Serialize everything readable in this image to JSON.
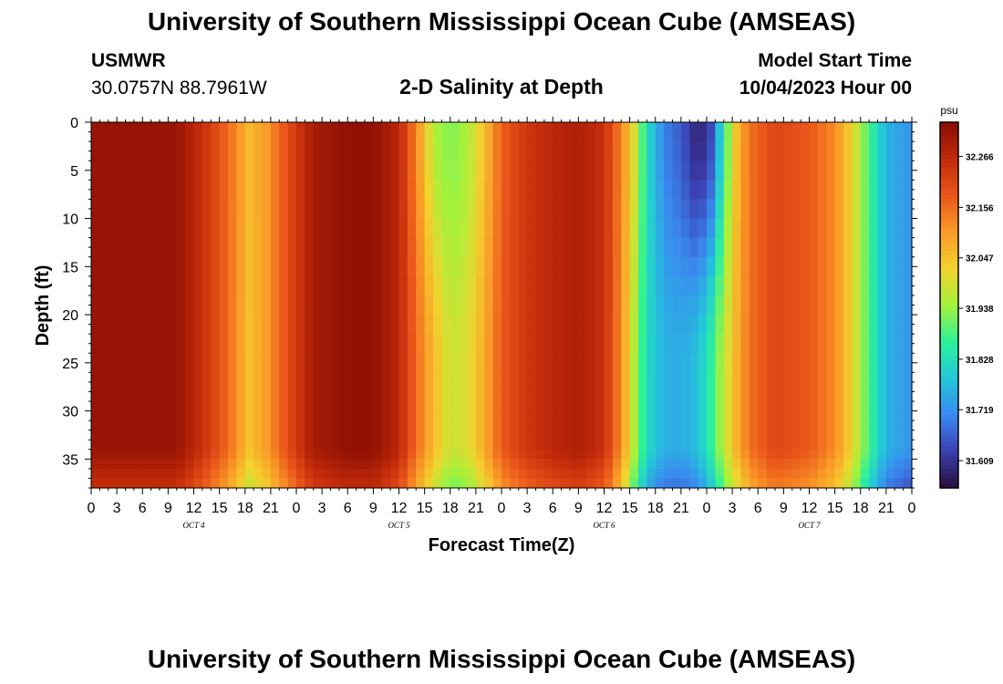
{
  "page": {
    "title": "University of Southern Mississippi Ocean Cube (AMSEAS)",
    "bottom_title": "University of Southern Mississippi Ocean Cube (AMSEAS)",
    "station": "USMWR",
    "coordinates": "30.0757N  88.7961W",
    "subtitle": "2-D Salinity at Depth",
    "model_start_label": "Model Start Time",
    "model_start_value": "10/04/2023 Hour 00"
  },
  "chart_data": {
    "type": "heatmap",
    "title": "2-D Salinity at Depth",
    "xlabel": "Forecast Time(Z)",
    "ylabel": "Depth (ft)",
    "colorbar_unit": "psu",
    "xlim": [
      0,
      96
    ],
    "ylim": [
      38,
      0
    ],
    "y_ticks": [
      0,
      5,
      10,
      15,
      20,
      25,
      30,
      35
    ],
    "y_tick_labels": [
      "0",
      "5",
      "10",
      "15",
      "20",
      "25",
      "30",
      "35"
    ],
    "x_ticks": [
      0,
      3,
      6,
      9,
      12,
      15,
      18,
      21,
      24,
      27,
      30,
      33,
      36,
      39,
      42,
      45,
      48,
      51,
      54,
      57,
      60,
      63,
      66,
      69,
      72,
      75,
      78,
      81,
      84,
      87,
      90,
      93,
      96
    ],
    "x_tick_labels": [
      "0",
      "3",
      "6",
      "9",
      "12",
      "15",
      "18",
      "21",
      "0",
      "3",
      "6",
      "9",
      "12",
      "15",
      "18",
      "21",
      "0",
      "3",
      "6",
      "9",
      "12",
      "15",
      "18",
      "21",
      "0",
      "3",
      "6",
      "9",
      "12",
      "15",
      "18",
      "21",
      "0"
    ],
    "day_labels": [
      {
        "hour": 12,
        "label": "OCT 4"
      },
      {
        "hour": 36,
        "label": "OCT 5"
      },
      {
        "hour": 60,
        "label": "OCT 6"
      },
      {
        "hour": 84,
        "label": "OCT 7"
      }
    ],
    "colorbar_min": 31.55,
    "colorbar_max": 32.34,
    "colorbar_ticks": [
      "32.266",
      "32.156",
      "32.047",
      "31.938",
      "31.828",
      "31.719",
      "31.609"
    ],
    "colorbar_tick_values": [
      32.266,
      32.156,
      32.047,
      31.938,
      31.828,
      31.719,
      31.609
    ],
    "palette": [
      "#2a0f3a",
      "#3b3fb2",
      "#3a8af0",
      "#23c7d9",
      "#2df29a",
      "#a5f23a",
      "#f2d22e",
      "#fa9a28",
      "#ea561a",
      "#c02a0a",
      "#8a0d03"
    ],
    "surface_salinity_by_hour": [
      [
        0,
        32.32
      ],
      [
        6,
        32.32
      ],
      [
        10,
        32.32
      ],
      [
        13,
        32.25
      ],
      [
        16,
        32.16
      ],
      [
        18.5,
        32.06
      ],
      [
        20.5,
        32.1
      ],
      [
        23,
        32.2
      ],
      [
        26,
        32.3
      ],
      [
        30,
        32.33
      ],
      [
        33,
        32.33
      ],
      [
        36,
        32.27
      ],
      [
        38,
        32.13
      ],
      [
        40,
        31.96
      ],
      [
        42,
        31.92
      ],
      [
        44,
        31.95
      ],
      [
        46,
        32.05
      ],
      [
        48,
        32.17
      ],
      [
        51,
        32.24
      ],
      [
        54,
        32.27
      ],
      [
        57,
        32.29
      ],
      [
        60,
        32.25
      ],
      [
        62,
        32.13
      ],
      [
        63.5,
        32.0
      ],
      [
        65,
        31.83
      ],
      [
        67,
        31.7
      ],
      [
        69,
        31.66
      ],
      [
        71,
        31.58
      ],
      [
        72.5,
        31.64
      ],
      [
        73.5,
        31.78
      ],
      [
        74.5,
        31.92
      ],
      [
        75.5,
        32.05
      ],
      [
        77,
        32.15
      ],
      [
        80,
        32.21
      ],
      [
        84,
        32.18
      ],
      [
        87,
        32.12
      ],
      [
        89,
        32.02
      ],
      [
        91,
        31.88
      ],
      [
        93,
        31.76
      ],
      [
        96,
        31.72
      ]
    ],
    "deep_salinity_by_hour": [
      [
        0,
        32.32
      ],
      [
        6,
        32.32
      ],
      [
        10,
        32.32
      ],
      [
        13,
        32.25
      ],
      [
        16,
        32.16
      ],
      [
        18.5,
        32.05
      ],
      [
        20.5,
        32.1
      ],
      [
        23,
        32.2
      ],
      [
        26,
        32.3
      ],
      [
        30,
        32.33
      ],
      [
        33,
        32.33
      ],
      [
        36,
        32.27
      ],
      [
        38,
        32.16
      ],
      [
        40,
        32.06
      ],
      [
        42,
        31.98
      ],
      [
        44,
        32.0
      ],
      [
        46,
        32.08
      ],
      [
        48,
        32.18
      ],
      [
        51,
        32.24
      ],
      [
        54,
        32.27
      ],
      [
        57,
        32.29
      ],
      [
        60,
        32.25
      ],
      [
        62,
        32.12
      ],
      [
        63.5,
        31.96
      ],
      [
        65,
        31.82
      ],
      [
        67,
        31.76
      ],
      [
        69,
        31.75
      ],
      [
        71,
        31.78
      ],
      [
        72.5,
        31.86
      ],
      [
        74,
        31.97
      ],
      [
        75.5,
        32.07
      ],
      [
        77,
        32.15
      ],
      [
        80,
        32.21
      ],
      [
        84,
        32.18
      ],
      [
        87,
        32.12
      ],
      [
        89,
        32.02
      ],
      [
        91,
        31.88
      ],
      [
        93,
        31.76
      ],
      [
        96,
        31.72
      ]
    ]
  }
}
